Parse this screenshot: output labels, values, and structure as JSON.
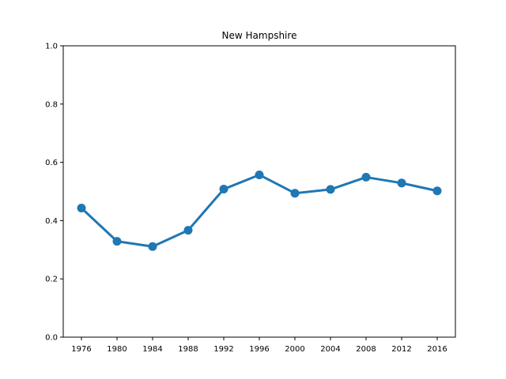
{
  "chart_data": {
    "type": "line",
    "title": "New Hampshire",
    "xlabel": "",
    "ylabel": "",
    "categories": [
      "1976",
      "1980",
      "1984",
      "1988",
      "1992",
      "1996",
      "2000",
      "2004",
      "2008",
      "2012",
      "2016"
    ],
    "series": [
      {
        "values": [
          0.443,
          0.329,
          0.311,
          0.367,
          0.508,
          0.557,
          0.494,
          0.507,
          0.549,
          0.529,
          0.502
        ]
      }
    ],
    "ylim": [
      0,
      1.0
    ],
    "yticks": [
      "0.0",
      "0.2",
      "0.4",
      "0.6",
      "0.8",
      "1.0"
    ],
    "grid": false,
    "colors": {
      "line": "#1f77b4"
    }
  }
}
